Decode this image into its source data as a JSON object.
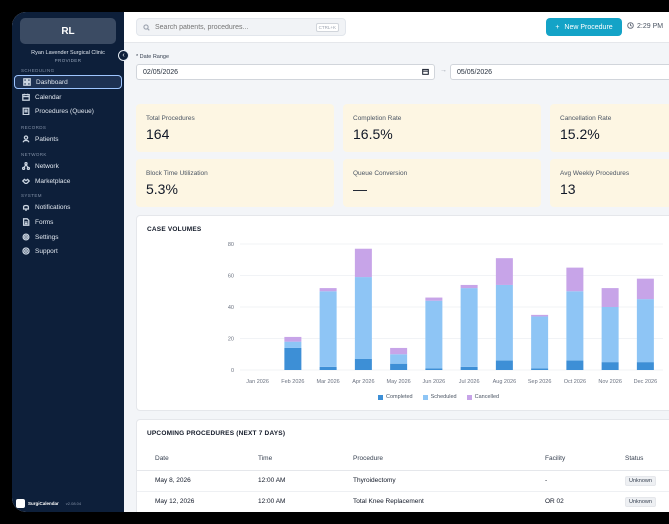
{
  "sidebar": {
    "avatar_initials": "RL",
    "clinic_name": "Ryan Lavender Surgical Clinic",
    "role": "PROVIDER",
    "collapse_glyph": "‹",
    "sections": {
      "scheduling": "SCHEDULING",
      "records": "RECORDS",
      "network": "NETWORK",
      "system": "SYSTEM"
    },
    "items": [
      {
        "label": "Dashboard",
        "icon": "dashboard-icon",
        "active": true
      },
      {
        "label": "Calendar",
        "icon": "calendar-icon"
      },
      {
        "label": "Procedures (Queue)",
        "icon": "clipboard-icon"
      },
      {
        "label": "Patients",
        "icon": "user-icon"
      },
      {
        "label": "Network",
        "icon": "network-icon"
      },
      {
        "label": "Marketplace",
        "icon": "handshake-icon"
      },
      {
        "label": "Notifications",
        "icon": "bell-icon"
      },
      {
        "label": "Forms",
        "icon": "document-icon"
      },
      {
        "label": "Settings",
        "icon": "gear-icon"
      },
      {
        "label": "Support",
        "icon": "lifebuoy-icon"
      }
    ],
    "brand": {
      "name": "SurgiCalendar",
      "version": "v2.08.04"
    }
  },
  "topbar": {
    "search_placeholder": "Search patients, procedures...",
    "search_shortcut": "CTRL+K",
    "new_button_label": "New Procedure",
    "new_button_glyph": "+",
    "time": "2:29 PM"
  },
  "filters": {
    "date_range_label": "* Date Range",
    "start_date": "02/05/2026",
    "end_date": "05/05/2026",
    "arrow": "→"
  },
  "stats": [
    {
      "label": "Total Procedures",
      "value": "164"
    },
    {
      "label": "Completion Rate",
      "value": "16.5%"
    },
    {
      "label": "Cancellation Rate",
      "value": "15.2%"
    },
    {
      "label": "Block Time Utilization",
      "value": "5.3%"
    },
    {
      "label": "Queue Conversion",
      "value": "—"
    },
    {
      "label": "Avg Weekly Procedures",
      "value": "13"
    }
  ],
  "case_volumes": {
    "title": "CASE VOLUMES",
    "colors": {
      "completed": "#3d8fd6",
      "scheduled": "#8ec5f5",
      "cancelled": "#c7a4e8"
    }
  },
  "chart_data": {
    "type": "bar",
    "stacked": true,
    "categories": [
      "Jan 2026",
      "Feb 2026",
      "Mar 2026",
      "Apr 2026",
      "May 2026",
      "Jun 2026",
      "Jul 2026",
      "Aug 2026",
      "Sep 2026",
      "Oct 2026",
      "Nov 2026",
      "Dec 2026"
    ],
    "series": [
      {
        "name": "Completed",
        "values": [
          0,
          14,
          2,
          7,
          4,
          1,
          2,
          6,
          1,
          6,
          5,
          5
        ]
      },
      {
        "name": "Scheduled",
        "values": [
          0,
          4,
          48,
          52,
          6,
          43,
          50,
          48,
          33,
          44,
          35,
          40
        ]
      },
      {
        "name": "Cancelled",
        "values": [
          0,
          3,
          2,
          18,
          4,
          2,
          2,
          17,
          1,
          15,
          12,
          13
        ]
      }
    ],
    "ylim": [
      0,
      80
    ],
    "yticks": [
      0,
      20,
      40,
      60,
      80
    ],
    "grid": true,
    "legend": "bottom"
  },
  "upcoming": {
    "title": "UPCOMING PROCEDURES (NEXT 7 DAYS)",
    "columns": [
      "Date",
      "Time",
      "Procedure",
      "Facility",
      "Status"
    ],
    "rows": [
      {
        "date": "May 8, 2026",
        "time": "12:00 AM",
        "procedure": "Thyroidectomy",
        "facility": "-",
        "status": "Unknown"
      },
      {
        "date": "May 12, 2026",
        "time": "12:00 AM",
        "procedure": "Total Knee Replacement",
        "facility": "OR 02",
        "status": "Unknown"
      }
    ]
  }
}
